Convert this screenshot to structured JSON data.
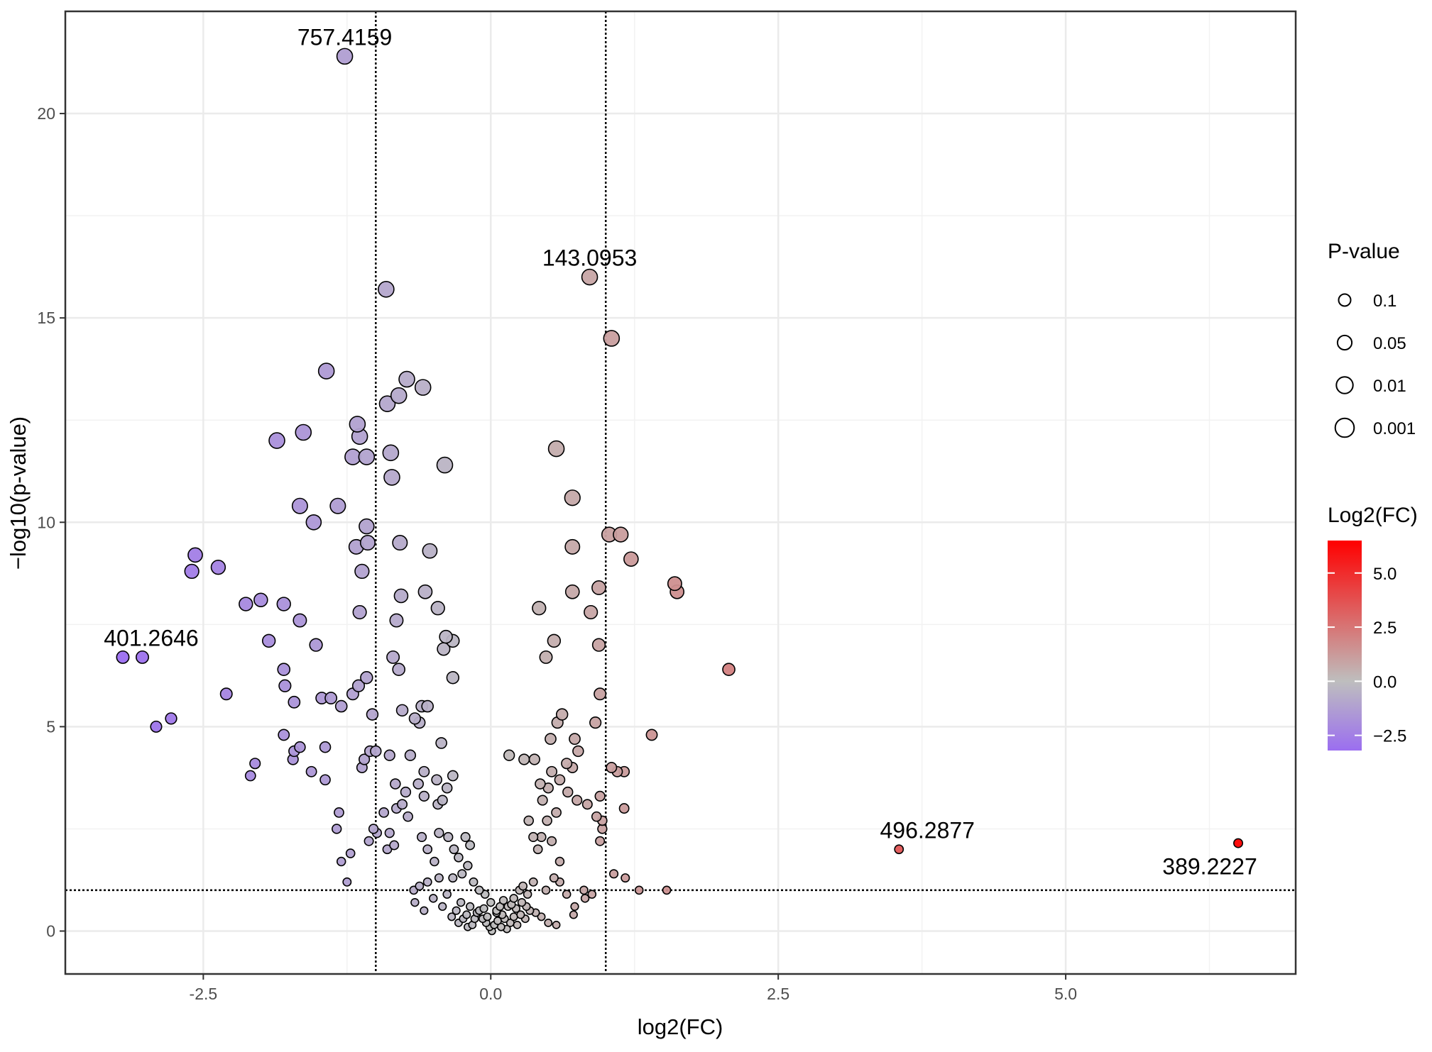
{
  "chart_data": {
    "type": "scatter",
    "subtype": "volcano",
    "title": "",
    "xlabel": "log2(FC)",
    "ylabel": "−log10(p-value)",
    "xlim": [
      -3.7,
      7.0
    ],
    "ylim": [
      -1.05,
      22.5
    ],
    "xticks": [
      -2.5,
      0.0,
      2.5,
      5.0
    ],
    "xtick_labels": [
      "-2.5",
      "0.0",
      "2.5",
      "5.0"
    ],
    "yticks": [
      0,
      5,
      10,
      15,
      20
    ],
    "ytick_labels": [
      "0",
      "5",
      "10",
      "15",
      "20"
    ],
    "grid": true,
    "thresholds": {
      "vlines": [
        -1,
        1
      ],
      "hline": 1
    },
    "annotations": [
      {
        "label": "757.4159",
        "x": -1.27,
        "y": 21.4
      },
      {
        "label": "143.0953",
        "x": 0.86,
        "y": 16.0
      },
      {
        "label": "401.2646",
        "x": -3.2,
        "y": 6.7
      },
      {
        "label": "496.2877",
        "x": 3.55,
        "y": 2.0
      },
      {
        "label": "389.2227",
        "x": 6.5,
        "y": 2.15
      }
    ],
    "points": [
      [
        -1.27,
        21.4
      ],
      [
        -0.91,
        15.7
      ],
      [
        0.86,
        16.0
      ],
      [
        1.05,
        14.5
      ],
      [
        -1.43,
        13.7
      ],
      [
        -0.73,
        13.5
      ],
      [
        -0.59,
        13.3
      ],
      [
        -0.8,
        13.1
      ],
      [
        -0.9,
        12.9
      ],
      [
        -1.16,
        12.4
      ],
      [
        -1.14,
        12.1
      ],
      [
        -1.63,
        12.2
      ],
      [
        -1.86,
        12.0
      ],
      [
        -1.2,
        11.6
      ],
      [
        -1.08,
        11.6
      ],
      [
        -0.87,
        11.7
      ],
      [
        -0.86,
        11.1
      ],
      [
        -0.4,
        11.4
      ],
      [
        0.57,
        11.8
      ],
      [
        0.71,
        10.6
      ],
      [
        -1.66,
        10.4
      ],
      [
        -1.33,
        10.4
      ],
      [
        -1.54,
        10.0
      ],
      [
        -1.08,
        9.9
      ],
      [
        -1.17,
        9.4
      ],
      [
        -1.07,
        9.5
      ],
      [
        -0.79,
        9.5
      ],
      [
        -0.53,
        9.3
      ],
      [
        -1.12,
        8.8
      ],
      [
        1.03,
        9.7
      ],
      [
        1.13,
        9.7
      ],
      [
        0.71,
        9.4
      ],
      [
        1.22,
        9.1
      ],
      [
        -2.57,
        9.2
      ],
      [
        -2.6,
        8.8
      ],
      [
        -2.37,
        8.9
      ],
      [
        -2.13,
        8.0
      ],
      [
        -2.0,
        8.1
      ],
      [
        -1.8,
        8.0
      ],
      [
        -1.66,
        7.6
      ],
      [
        -1.14,
        7.8
      ],
      [
        -0.78,
        8.2
      ],
      [
        -0.57,
        8.3
      ],
      [
        -0.46,
        7.9
      ],
      [
        -0.82,
        7.6
      ],
      [
        1.6,
        8.5
      ],
      [
        1.62,
        8.3
      ],
      [
        0.94,
        8.4
      ],
      [
        0.71,
        8.3
      ],
      [
        0.87,
        7.8
      ],
      [
        0.42,
        7.9
      ],
      [
        -1.93,
        7.1
      ],
      [
        -1.52,
        7.0
      ],
      [
        -0.39,
        7.2
      ],
      [
        -0.33,
        7.1
      ],
      [
        -0.41,
        6.9
      ],
      [
        -0.85,
        6.7
      ],
      [
        -0.8,
        6.4
      ],
      [
        -1.08,
        6.2
      ],
      [
        -1.15,
        6.0
      ],
      [
        -0.33,
        6.2
      ],
      [
        0.55,
        7.1
      ],
      [
        0.48,
        6.7
      ],
      [
        0.94,
        7.0
      ],
      [
        2.07,
        6.4
      ],
      [
        -3.2,
        6.7
      ],
      [
        -3.03,
        6.7
      ],
      [
        -1.8,
        6.4
      ],
      [
        -1.79,
        6.0
      ],
      [
        -1.71,
        5.6
      ],
      [
        -1.47,
        5.7
      ],
      [
        -1.39,
        5.7
      ],
      [
        -1.3,
        5.5
      ],
      [
        -1.2,
        5.8
      ],
      [
        -1.03,
        5.3
      ],
      [
        -0.77,
        5.4
      ],
      [
        -0.66,
        5.2
      ],
      [
        -0.6,
        5.5
      ],
      [
        -0.55,
        5.5
      ],
      [
        -0.62,
        5.1
      ],
      [
        -0.43,
        4.6
      ],
      [
        -2.3,
        5.8
      ],
      [
        -2.78,
        5.2
      ],
      [
        -2.91,
        5.0
      ],
      [
        0.95,
        5.8
      ],
      [
        0.91,
        5.1
      ],
      [
        0.62,
        5.3
      ],
      [
        0.58,
        5.1
      ],
      [
        0.52,
        4.7
      ],
      [
        0.73,
        4.7
      ],
      [
        1.4,
        4.8
      ],
      [
        0.66,
        4.1
      ],
      [
        0.71,
        4.0
      ],
      [
        0.76,
        4.4
      ],
      [
        -1.8,
        4.8
      ],
      [
        -1.71,
        4.4
      ],
      [
        -1.66,
        4.5
      ],
      [
        -1.44,
        4.5
      ],
      [
        -1.72,
        4.2
      ],
      [
        -1.56,
        3.9
      ],
      [
        -1.44,
        3.7
      ],
      [
        -2.05,
        4.1
      ],
      [
        -2.09,
        3.8
      ],
      [
        -1.1,
        4.2
      ],
      [
        -1.05,
        4.4
      ],
      [
        -1.0,
        4.4
      ],
      [
        -0.88,
        4.3
      ],
      [
        -0.7,
        4.3
      ],
      [
        -1.12,
        4.0
      ],
      [
        -0.58,
        3.9
      ],
      [
        -0.47,
        3.7
      ],
      [
        -0.33,
        3.8
      ],
      [
        -0.83,
        3.6
      ],
      [
        -0.74,
        3.4
      ],
      [
        -0.63,
        3.6
      ],
      [
        -0.58,
        3.3
      ],
      [
        -0.38,
        3.5
      ],
      [
        -0.42,
        3.2
      ],
      [
        -0.77,
        3.1
      ],
      [
        -0.82,
        3.0
      ],
      [
        -0.72,
        2.8
      ],
      [
        -0.93,
        2.9
      ],
      [
        -0.46,
        3.1
      ],
      [
        0.16,
        4.3
      ],
      [
        0.29,
        4.2
      ],
      [
        0.38,
        4.2
      ],
      [
        0.53,
        3.9
      ],
      [
        0.43,
        3.6
      ],
      [
        0.5,
        3.5
      ],
      [
        0.6,
        3.7
      ],
      [
        0.45,
        3.2
      ],
      [
        0.67,
        3.4
      ],
      [
        0.75,
        3.2
      ],
      [
        0.84,
        3.1
      ],
      [
        0.95,
        3.3
      ],
      [
        1.05,
        4.0
      ],
      [
        1.16,
        3.9
      ],
      [
        1.16,
        3.0
      ],
      [
        1.1,
        3.9
      ],
      [
        0.92,
        2.8
      ],
      [
        0.97,
        2.7
      ],
      [
        0.57,
        2.9
      ],
      [
        0.33,
        2.7
      ],
      [
        -1.32,
        2.9
      ],
      [
        -1.34,
        2.5
      ],
      [
        -1.02,
        2.5
      ],
      [
        -0.99,
        2.4
      ],
      [
        -0.88,
        2.4
      ],
      [
        -1.06,
        2.2
      ],
      [
        -0.84,
        2.1
      ],
      [
        0.49,
        2.7
      ],
      [
        0.44,
        2.3
      ],
      [
        0.37,
        2.3
      ],
      [
        0.53,
        2.2
      ],
      [
        0.41,
        2.0
      ],
      [
        0.6,
        1.7
      ],
      [
        0.95,
        2.2
      ],
      [
        0.97,
        2.5
      ],
      [
        -1.3,
        1.7
      ],
      [
        -1.22,
        1.9
      ],
      [
        -0.9,
        2.0
      ],
      [
        -0.6,
        2.3
      ],
      [
        -0.45,
        2.4
      ],
      [
        -0.37,
        2.3
      ],
      [
        -0.32,
        2.0
      ],
      [
        -0.28,
        1.8
      ],
      [
        -0.22,
        2.3
      ],
      [
        -0.18,
        2.1
      ],
      [
        -0.55,
        2.0
      ],
      [
        -0.49,
        1.7
      ],
      [
        -0.2,
        1.6
      ],
      [
        -1.25,
        1.2
      ],
      [
        -0.67,
        1.0
      ],
      [
        -0.62,
        1.1
      ],
      [
        -0.55,
        1.2
      ],
      [
        -0.45,
        1.3
      ],
      [
        -0.33,
        1.3
      ],
      [
        -0.25,
        1.4
      ],
      [
        -0.15,
        1.2
      ],
      [
        -0.1,
        1.0
      ],
      [
        -0.05,
        0.9
      ],
      [
        0.0,
        0.7
      ],
      [
        0.05,
        0.5
      ],
      [
        0.1,
        0.4
      ],
      [
        0.15,
        0.6
      ],
      [
        0.2,
        0.8
      ],
      [
        0.25,
        1.0
      ],
      [
        0.28,
        1.1
      ],
      [
        0.32,
        0.9
      ],
      [
        0.37,
        1.2
      ],
      [
        0.48,
        1.0
      ],
      [
        0.55,
        1.3
      ],
      [
        0.6,
        1.2
      ],
      [
        0.66,
        0.9
      ],
      [
        0.73,
        0.6
      ],
      [
        0.82,
        0.8
      ],
      [
        0.88,
        0.9
      ],
      [
        -0.66,
        0.7
      ],
      [
        -0.58,
        0.5
      ],
      [
        -0.5,
        0.8
      ],
      [
        -0.42,
        0.6
      ],
      [
        -0.38,
        0.9
      ],
      [
        -0.3,
        0.5
      ],
      [
        -0.26,
        0.7
      ],
      [
        -0.21,
        0.4
      ],
      [
        -0.18,
        0.6
      ],
      [
        -0.14,
        0.3
      ],
      [
        -0.1,
        0.5
      ],
      [
        -0.07,
        0.3
      ],
      [
        -0.04,
        0.2
      ],
      [
        -0.01,
        0.1
      ],
      [
        0.01,
        0.0
      ],
      [
        0.03,
        0.15
      ],
      [
        0.06,
        0.25
      ],
      [
        0.09,
        0.1
      ],
      [
        0.12,
        0.3
      ],
      [
        0.14,
        0.05
      ],
      [
        0.17,
        0.2
      ],
      [
        0.2,
        0.35
      ],
      [
        0.23,
        0.15
      ],
      [
        0.26,
        0.4
      ],
      [
        0.3,
        0.3
      ],
      [
        0.34,
        0.5
      ],
      [
        0.39,
        0.45
      ],
      [
        0.44,
        0.35
      ],
      [
        0.5,
        0.2
      ],
      [
        0.57,
        0.15
      ],
      [
        -0.03,
        0.35
      ],
      [
        -0.06,
        0.55
      ],
      [
        -0.12,
        0.45
      ],
      [
        -0.16,
        0.15
      ],
      [
        -0.2,
        0.1
      ],
      [
        -0.24,
        0.3
      ],
      [
        -0.28,
        0.2
      ],
      [
        -0.34,
        0.35
      ],
      [
        0.05,
        0.45
      ],
      [
        0.08,
        0.6
      ],
      [
        0.11,
        0.75
      ],
      [
        0.18,
        0.65
      ],
      [
        0.22,
        0.55
      ],
      [
        0.27,
        0.7
      ],
      [
        0.31,
        0.6
      ],
      [
        1.07,
        1.4
      ],
      [
        1.17,
        1.3
      ],
      [
        1.29,
        1.0
      ],
      [
        1.53,
        1.0
      ],
      [
        0.72,
        0.4
      ],
      [
        0.81,
        1.0
      ],
      [
        3.55,
        2.0
      ],
      [
        6.5,
        2.15
      ]
    ],
    "legend": [
      {
        "title": "P-value",
        "type": "size",
        "entries": [
          "0.1",
          "0.05",
          "0.01",
          "0.001"
        ]
      },
      {
        "title": "Log2(FC)",
        "type": "colorbar",
        "range": [
          -3.2,
          6.5
        ],
        "ticks": [
          5.0,
          2.5,
          0.0,
          -2.5
        ],
        "tick_labels": [
          "5.0",
          "2.5",
          "0.0",
          "−2.5"
        ],
        "colors": {
          "low": "#9b6ef0",
          "mid": "#bebebe",
          "high": "#ff0000"
        }
      }
    ],
    "legend_position": "right"
  }
}
